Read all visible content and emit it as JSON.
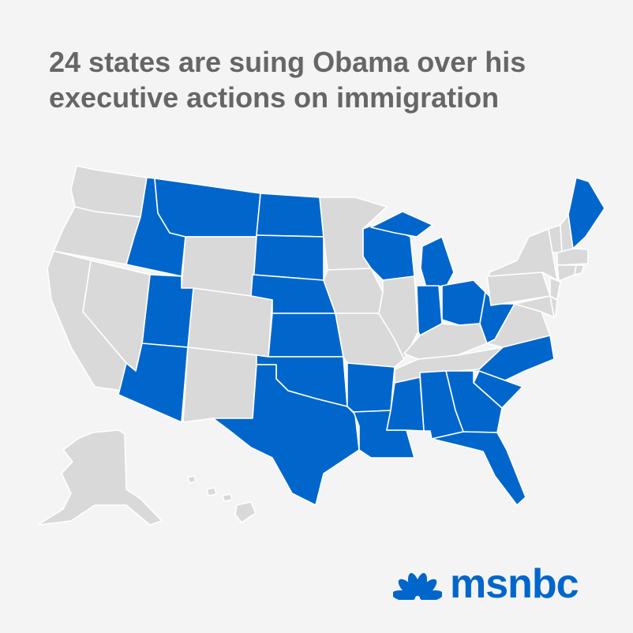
{
  "title": "24 states are suing Obama over his executive actions on immigration",
  "colors": {
    "background": "#f4f4f4",
    "suing": "#0066cc",
    "not_suing": "#d9d9d9",
    "title": "#666666"
  },
  "map": {
    "suing_states": [
      "ID",
      "MT",
      "ND",
      "SD",
      "NE",
      "KS",
      "UT",
      "AZ",
      "TX",
      "OK",
      "AR",
      "LA",
      "MS",
      "AL",
      "GA",
      "FL",
      "SC",
      "NC",
      "WI",
      "MI",
      "IN",
      "OH",
      "WV",
      "ME"
    ],
    "other_states": [
      "WA",
      "OR",
      "CA",
      "NV",
      "WY",
      "CO",
      "NM",
      "MN",
      "IA",
      "MO",
      "IL",
      "KY",
      "TN",
      "VA",
      "PA",
      "NY",
      "MD",
      "DE",
      "NJ",
      "CT",
      "RI",
      "MA",
      "VT",
      "NH",
      "AK",
      "HI"
    ]
  },
  "logo": {
    "text": "msnbc",
    "icon": "nbc-peacock-icon"
  }
}
